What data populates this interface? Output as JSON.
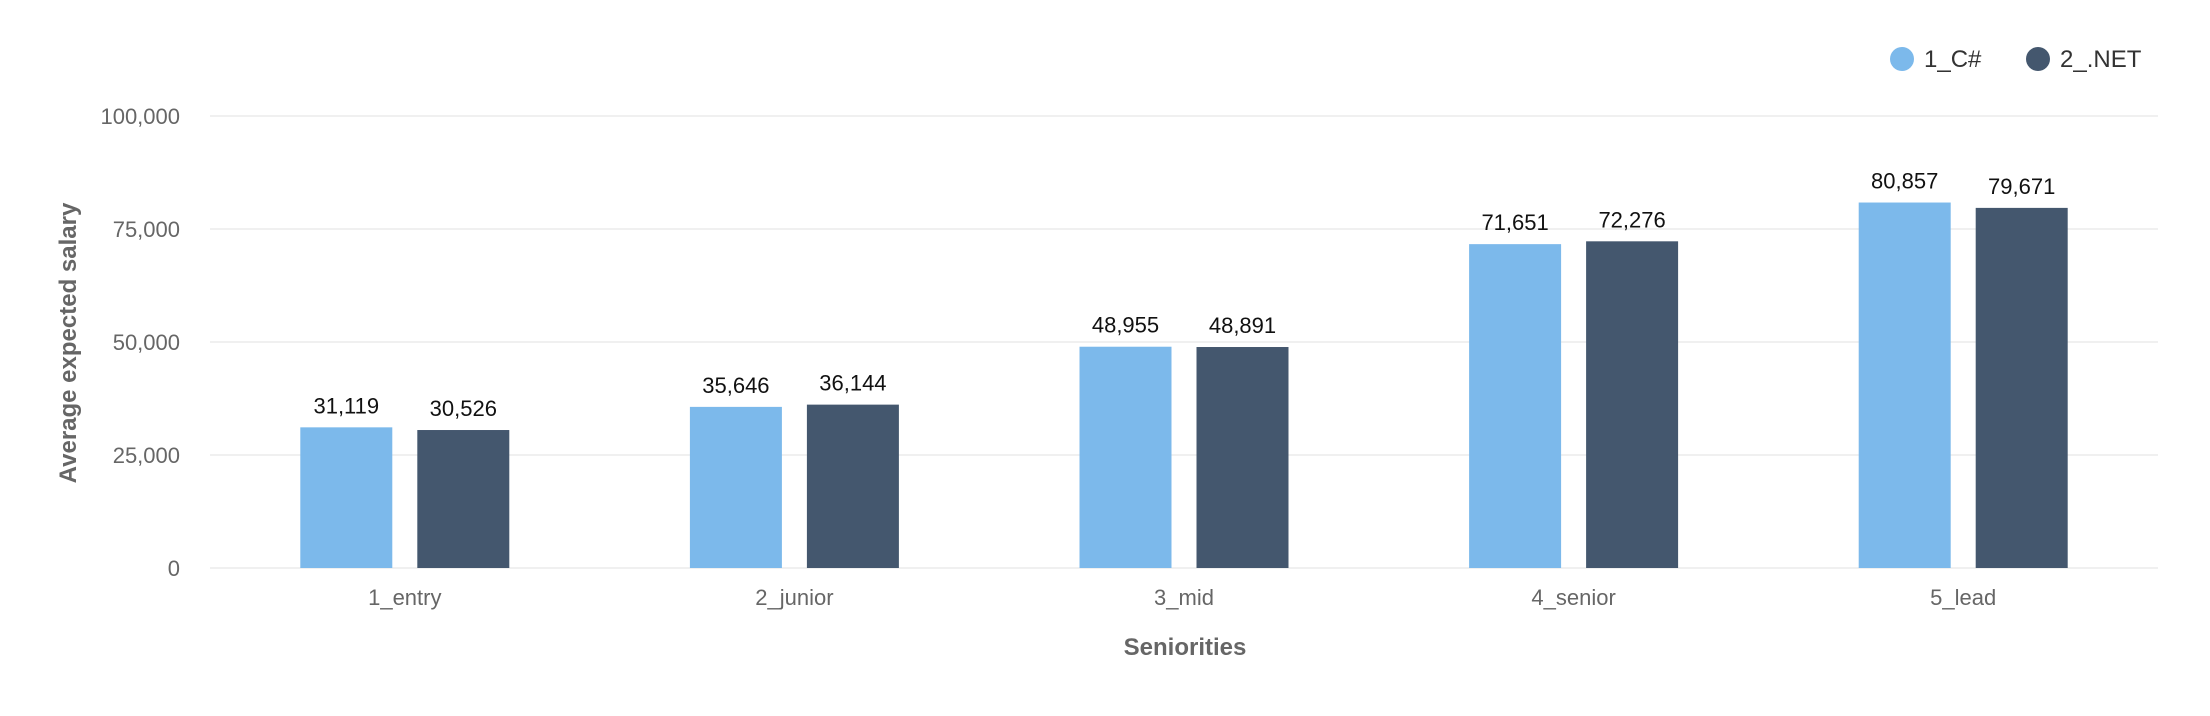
{
  "chart_data": {
    "type": "bar",
    "xlabel": "Seniorities",
    "ylabel": "Average expected salary",
    "ylim": [
      0,
      100000
    ],
    "yticks": [
      0,
      25000,
      50000,
      75000,
      100000
    ],
    "grid": true,
    "legend_position": "top-right",
    "categories": [
      "1_entry",
      "2_junior",
      "3_mid",
      "4_senior",
      "5_lead"
    ],
    "series": [
      {
        "name": "1_C#",
        "color": "#7cb9eb",
        "values": [
          31119,
          35646,
          48955,
          71651,
          80857
        ]
      },
      {
        "name": "2_.NET",
        "color": "#44576e",
        "values": [
          30526,
          36144,
          48891,
          72276,
          79671
        ]
      }
    ]
  }
}
